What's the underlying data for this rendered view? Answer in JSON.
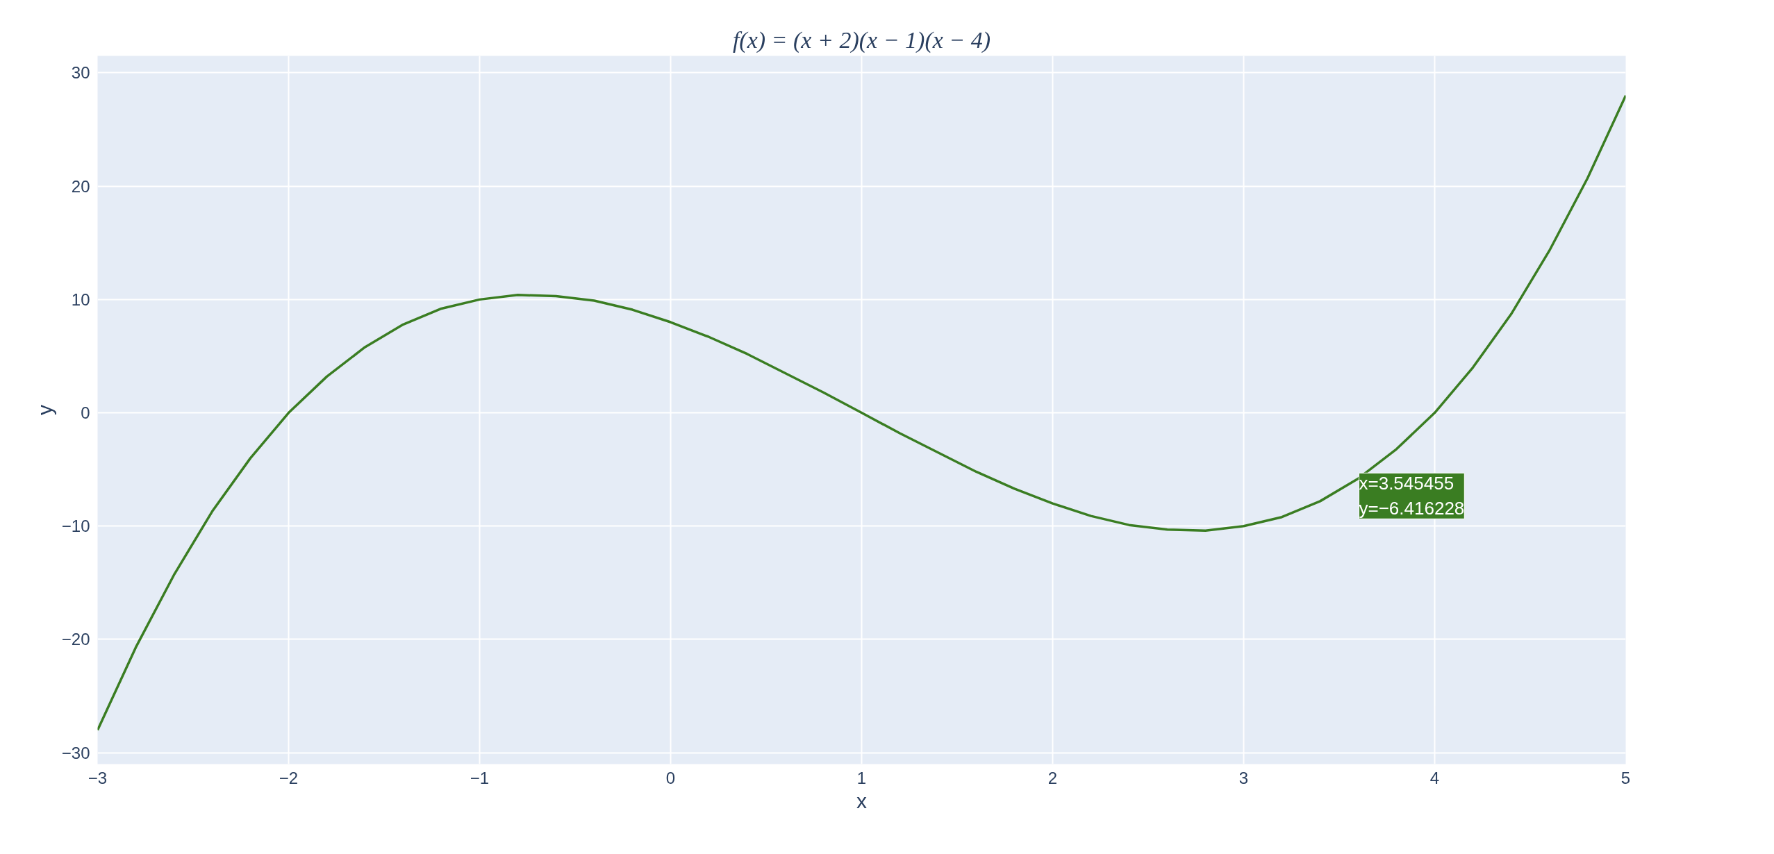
{
  "chart_data": {
    "type": "line",
    "title": "f(x) = (x + 2)(x − 1)(x − 4)",
    "xlabel": "x",
    "ylabel": "y",
    "x": [
      -3,
      -2.8,
      -2.6,
      -2.4,
      -2.2,
      -2,
      -1.8,
      -1.6,
      -1.4,
      -1.2,
      -1,
      -0.8,
      -0.6,
      -0.4,
      -0.2,
      0,
      0.2,
      0.4,
      0.6,
      0.8,
      1,
      1.2,
      1.4,
      1.6,
      1.8,
      2,
      2.2,
      2.4,
      2.6,
      2.8,
      3,
      3.2,
      3.4,
      3.6,
      3.8,
      4,
      4.2,
      4.4,
      4.6,
      4.8,
      5
    ],
    "series": [
      {
        "color": "#3a7d22",
        "values": [
          -28,
          -20.7,
          -14.3,
          -8.7,
          -4.0,
          0,
          3.2,
          5.8,
          7.8,
          9.2,
          10,
          10.4,
          10.3,
          9.9,
          9.1,
          8,
          6.7,
          5.2,
          3.5,
          1.8,
          0,
          -1.8,
          -3.5,
          -5.2,
          -6.7,
          -8,
          -9.1,
          -9.9,
          -10.3,
          -10.4,
          -10,
          -9.2,
          -7.8,
          -5.8,
          -3.2,
          0,
          4.0,
          8.7,
          14.3,
          20.7,
          28
        ]
      }
    ],
    "annotations": [
      {
        "text": "x=3.545455\ny=−6.416228",
        "x": 3.545455,
        "y": -6.416228
      }
    ],
    "xlim": [
      -3,
      5
    ],
    "ylim": [
      -31,
      31.5
    ],
    "xticks": [
      -3,
      -2,
      -1,
      0,
      1,
      2,
      3,
      4,
      5
    ],
    "yticks": [
      -30,
      -20,
      -10,
      0,
      10,
      20,
      30
    ],
    "grid": true,
    "marker": "none",
    "line_style": "solid"
  }
}
